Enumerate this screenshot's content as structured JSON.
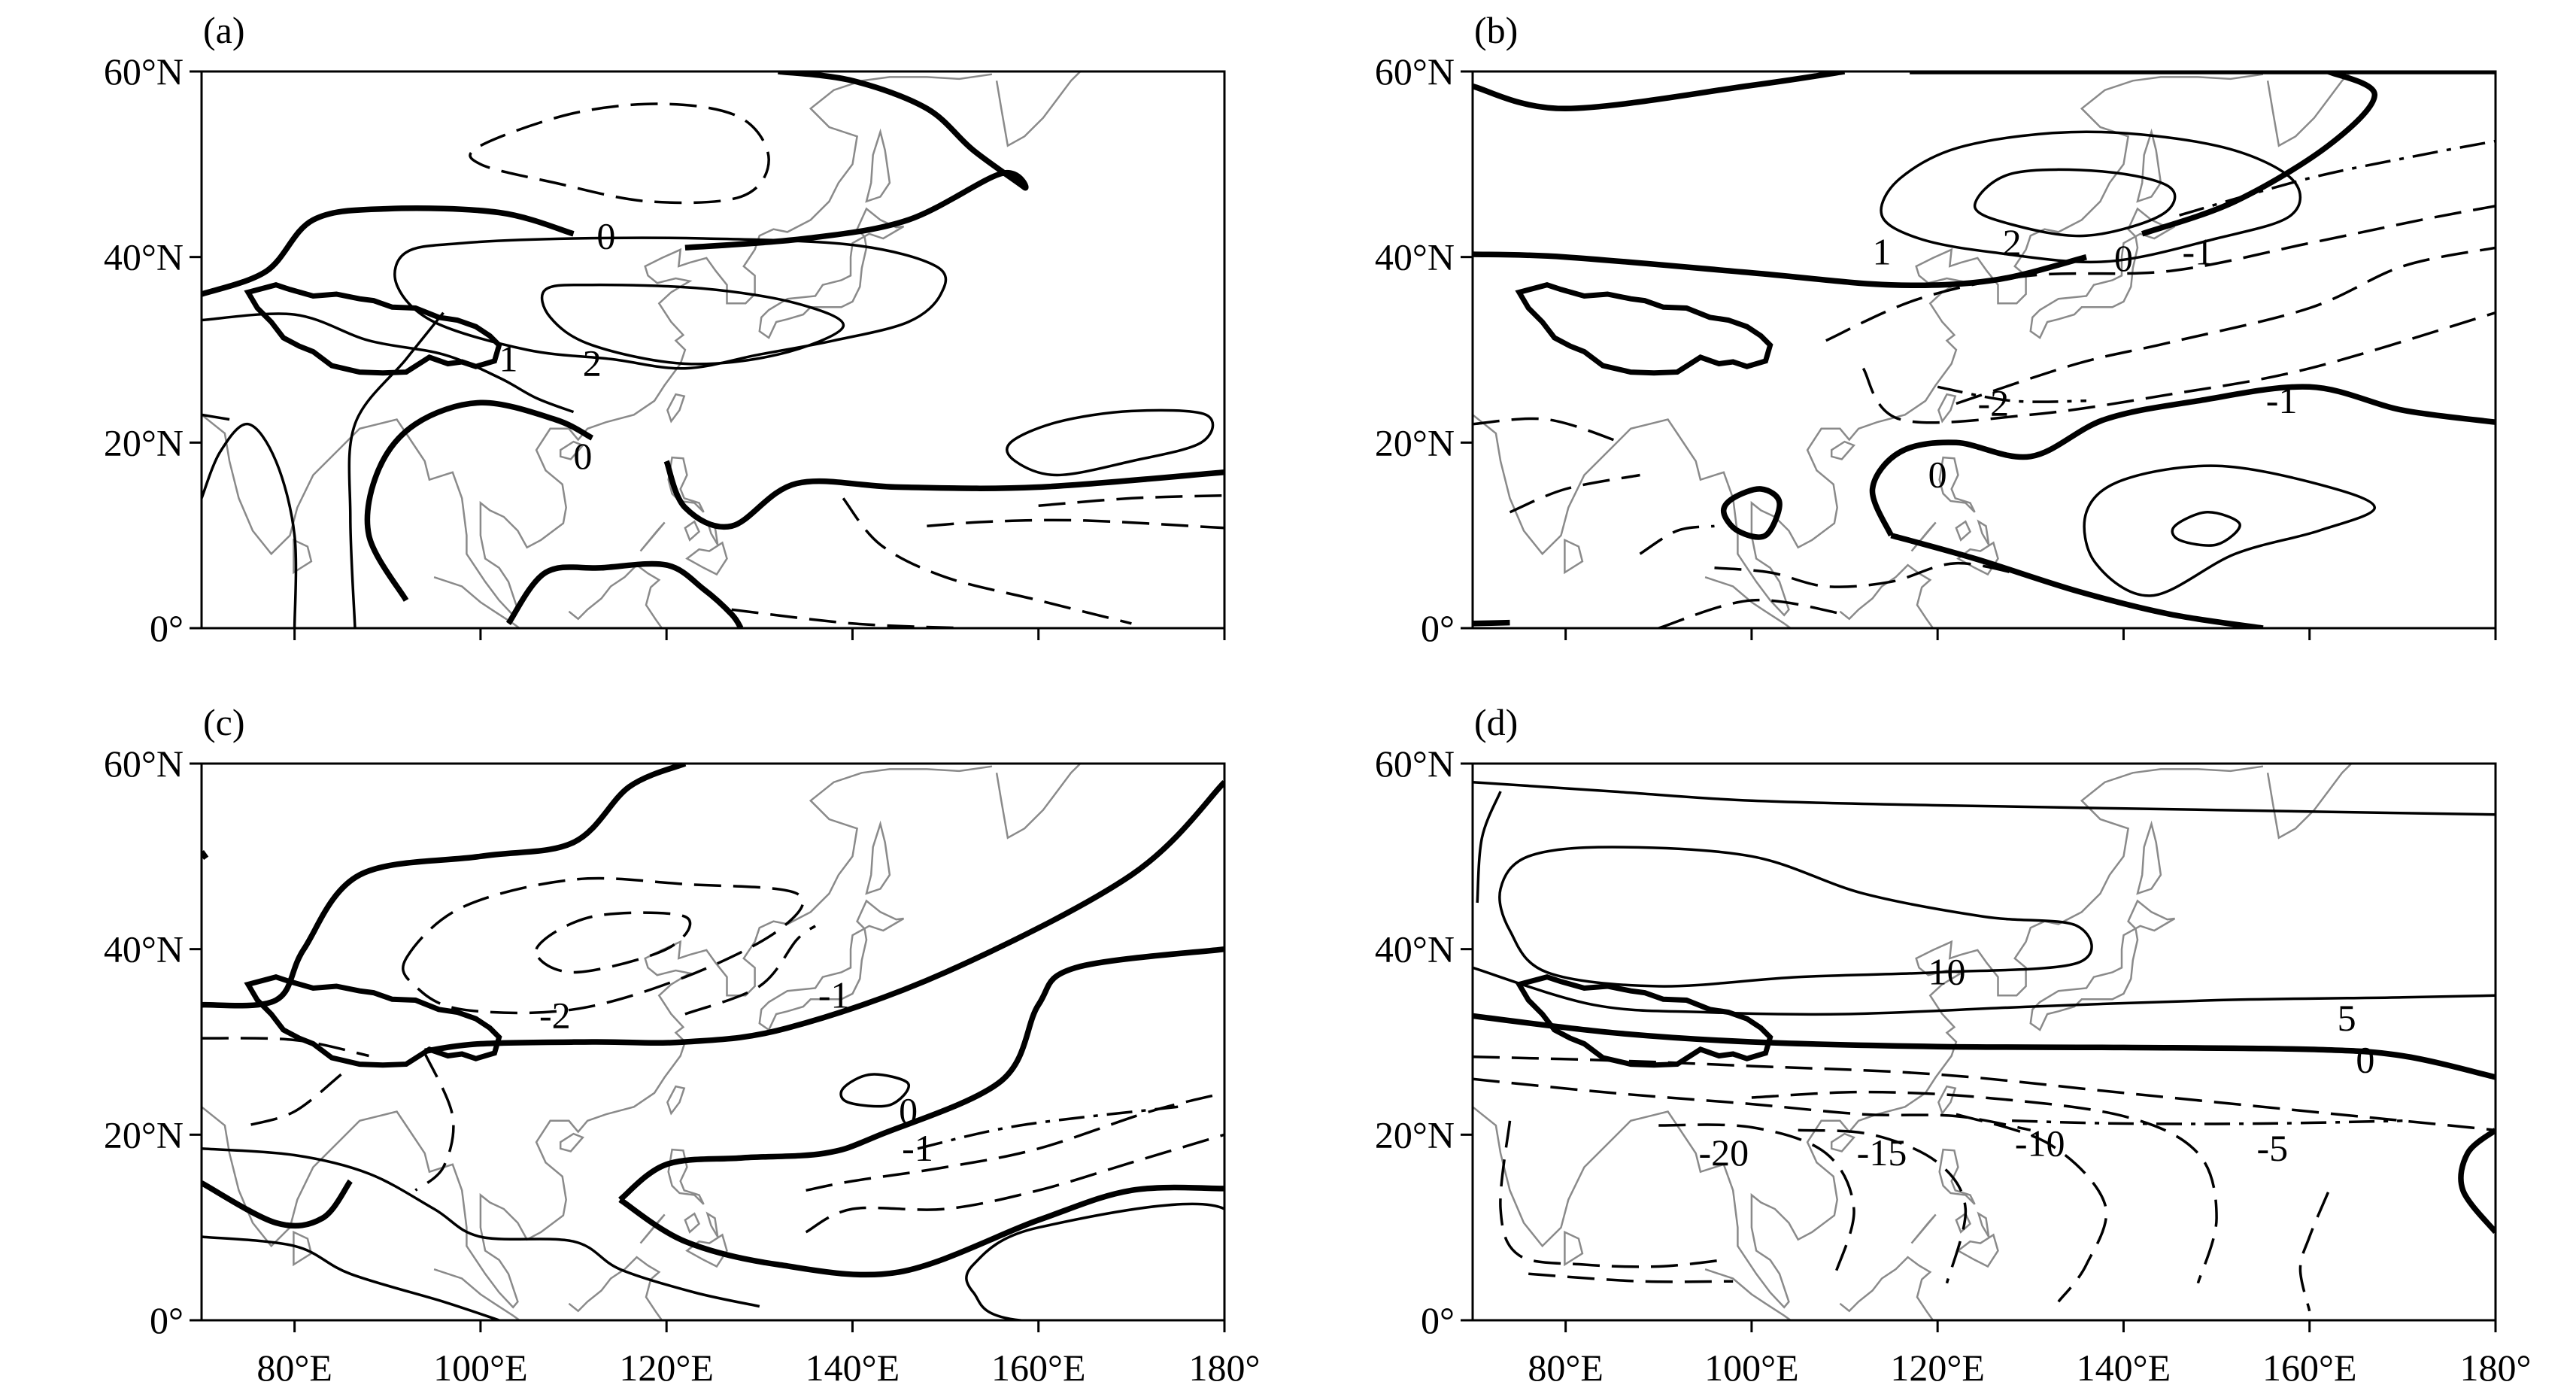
{
  "figure": {
    "panels": [
      {
        "label": "(a)",
        "x_ticks": [
          "80°E",
          "100°E",
          "120°E",
          "140°E",
          "160°E",
          "180°"
        ],
        "y_ticks": [
          "60°N",
          "40°N",
          "20°N",
          "0°"
        ],
        "show_x_tick_labels": false,
        "contour_labels": [
          "0",
          "2",
          "1",
          "0"
        ]
      },
      {
        "label": "(b)",
        "x_ticks": [
          "80°E",
          "100°E",
          "120°E",
          "140°E",
          "160°E",
          "180°"
        ],
        "y_ticks": [
          "60°N",
          "40°N",
          "20°N",
          "0°"
        ],
        "show_x_tick_labels": false,
        "contour_labels": [
          "1",
          "2",
          "0",
          "-1",
          "-2",
          "-1",
          "0"
        ]
      },
      {
        "label": "(c)",
        "x_ticks": [
          "80°E",
          "100°E",
          "120°E",
          "140°E",
          "160°E",
          "180°"
        ],
        "y_ticks": [
          "60°N",
          "40°N",
          "20°N",
          "0°"
        ],
        "show_x_tick_labels": true,
        "contour_labels": [
          "-2",
          "-1",
          "0",
          "-1"
        ]
      },
      {
        "label": "(d)",
        "x_ticks": [
          "80°E",
          "100°E",
          "120°E",
          "140°E",
          "160°E",
          "180°"
        ],
        "y_ticks": [
          "60°N",
          "40°N",
          "20°N",
          "0°"
        ],
        "show_x_tick_labels": true,
        "contour_labels": [
          "10",
          "5",
          "0",
          "-5",
          "-10",
          "-15",
          "-20"
        ]
      }
    ],
    "map_extent": {
      "lon_range": [
        70,
        180
      ],
      "lat_range": [
        0,
        60
      ]
    }
  }
}
